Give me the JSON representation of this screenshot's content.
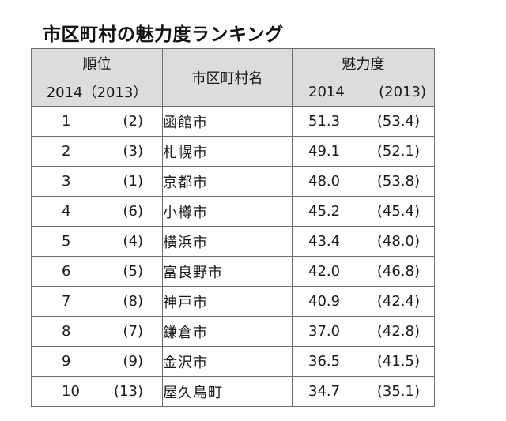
{
  "title": "市区町村の魅力度ランキング",
  "header": {
    "rank_label": "順位",
    "rank_years": "2014（2013）",
    "city_label": "市区町村名",
    "score_label": "魅力度",
    "score_year_current": "2014",
    "score_year_previous": "(2013)"
  },
  "rows": [
    {
      "rank": "1",
      "prev_rank": "(2)",
      "city": "函館市",
      "score": "51.3",
      "prev_score": "(53.4)"
    },
    {
      "rank": "2",
      "prev_rank": "(3)",
      "city": "札幌市",
      "score": "49.1",
      "prev_score": "(52.1)"
    },
    {
      "rank": "3",
      "prev_rank": "(1)",
      "city": "京都市",
      "score": "48.0",
      "prev_score": "(53.8)"
    },
    {
      "rank": "4",
      "prev_rank": "(6)",
      "city": "小樽市",
      "score": "45.2",
      "prev_score": "(45.4)"
    },
    {
      "rank": "5",
      "prev_rank": "(4)",
      "city": "横浜市",
      "score": "43.4",
      "prev_score": "(48.0)"
    },
    {
      "rank": "6",
      "prev_rank": "(5)",
      "city": "富良野市",
      "score": "42.0",
      "prev_score": "(46.8)"
    },
    {
      "rank": "7",
      "prev_rank": "(8)",
      "city": "神戸市",
      "score": "40.9",
      "prev_score": "(42.4)"
    },
    {
      "rank": "8",
      "prev_rank": "(7)",
      "city": "鎌倉市",
      "score": "37.0",
      "prev_score": "(42.8)"
    },
    {
      "rank": "9",
      "prev_rank": "(9)",
      "city": "金沢市",
      "score": "36.5",
      "prev_score": "(41.5)"
    },
    {
      "rank": "10",
      "prev_rank": "(13)",
      "city": "屋久島町",
      "score": "34.7",
      "prev_score": "(35.1)"
    }
  ]
}
